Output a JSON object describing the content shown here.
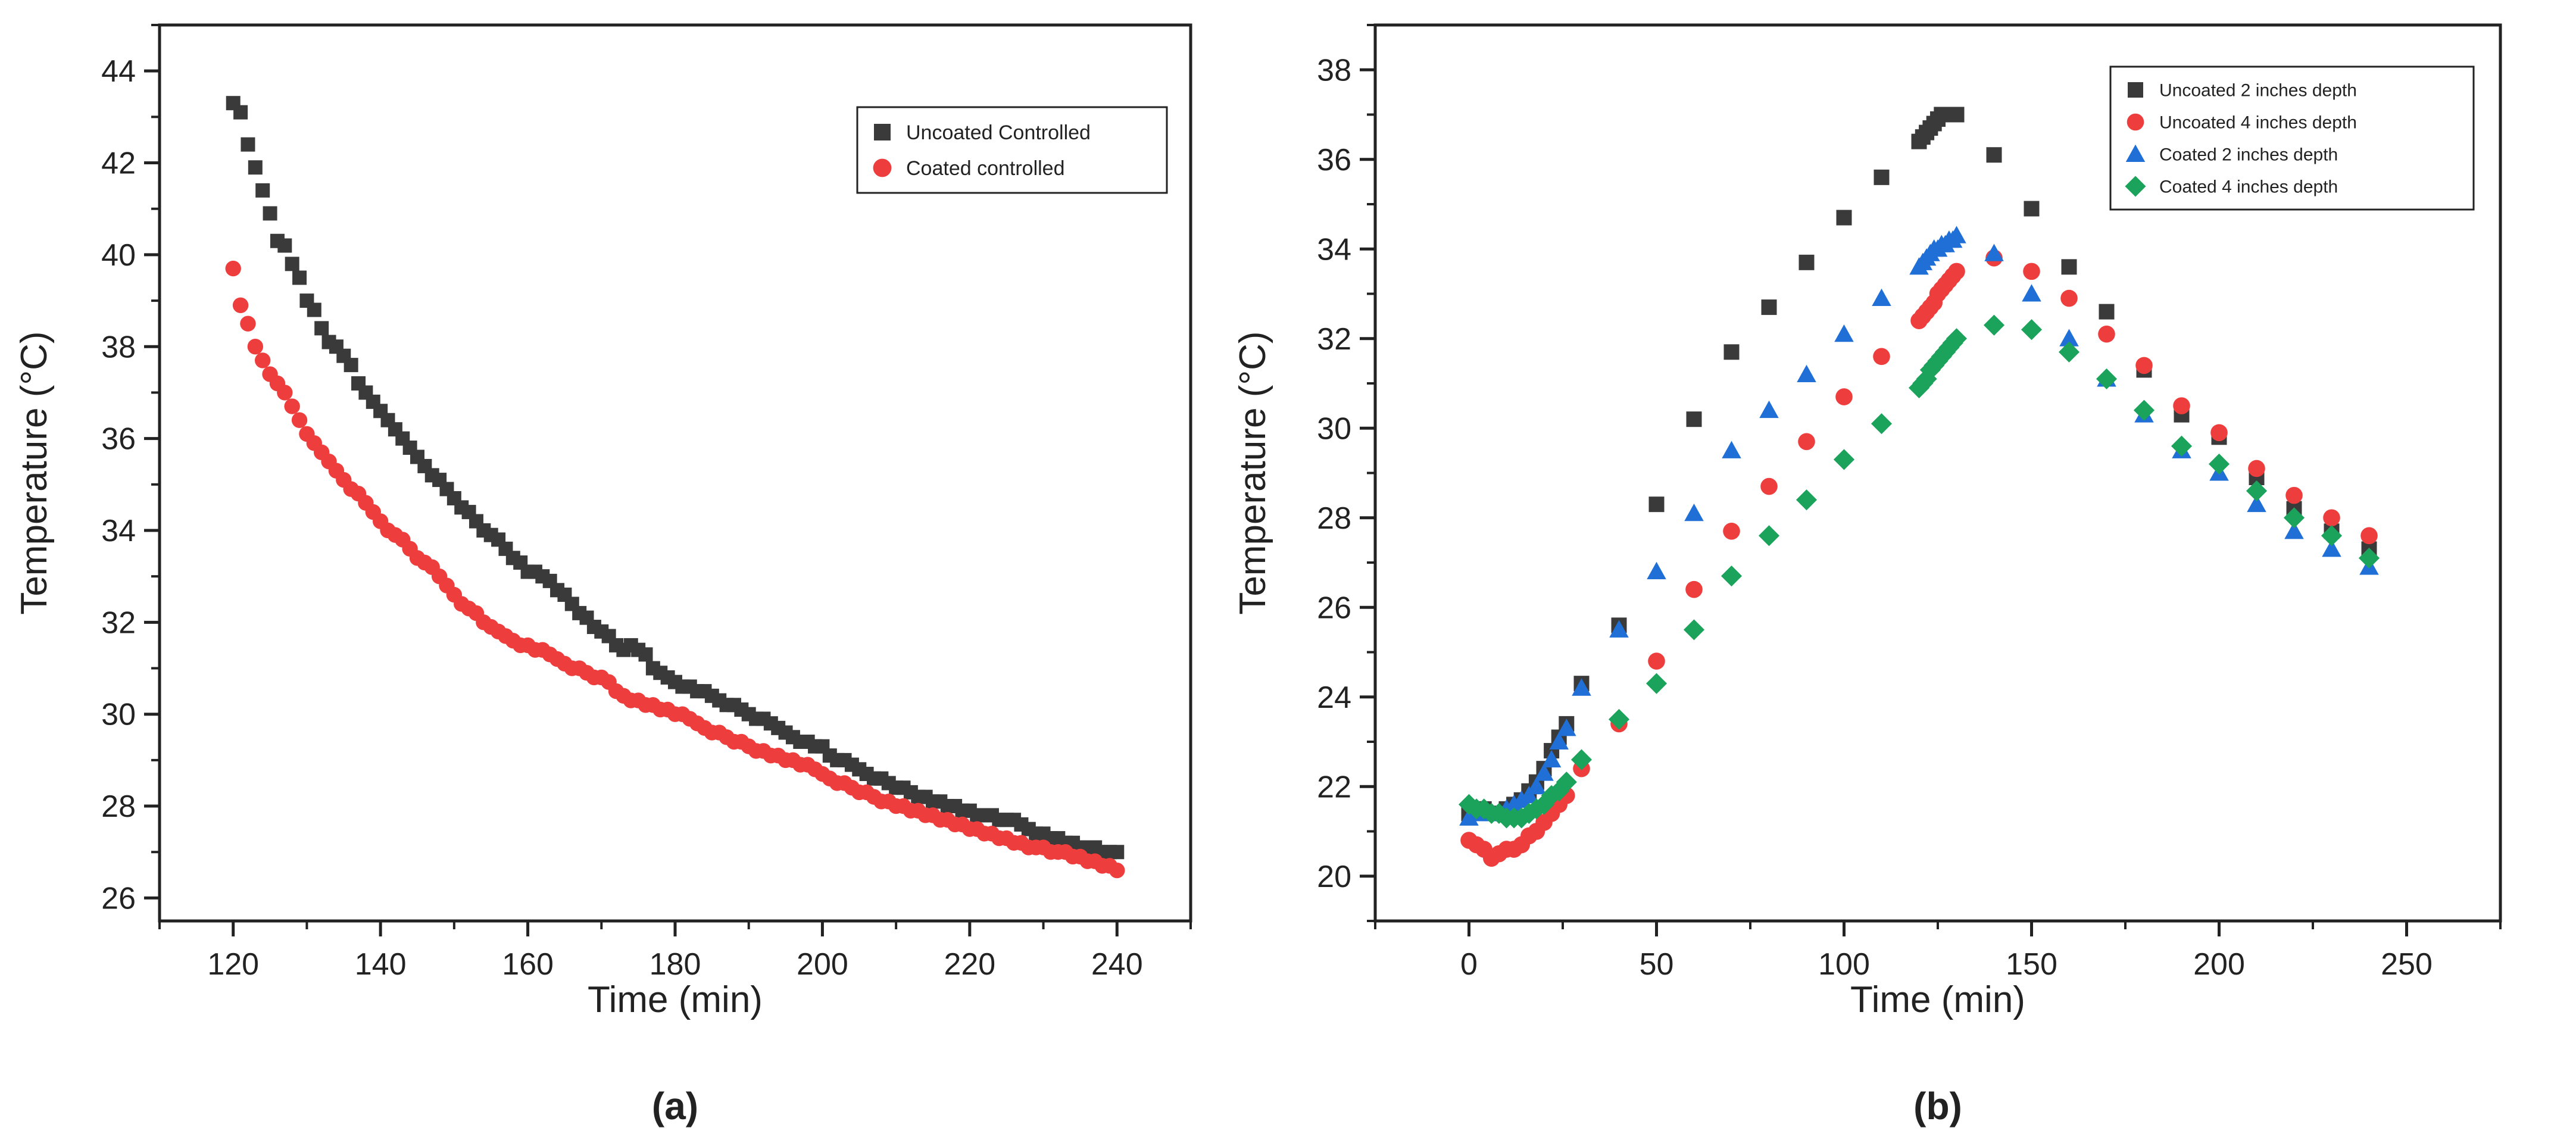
{
  "chart_data": [
    {
      "panel_label": "(a)",
      "type": "scatter",
      "title": "",
      "xlabel": "Time (min)",
      "ylabel": "Temperature (°C)",
      "xlim": [
        110,
        250
      ],
      "ylim": [
        25.5,
        45
      ],
      "xticks": [
        120,
        140,
        160,
        180,
        200,
        220,
        240
      ],
      "yticks": [
        26,
        28,
        30,
        32,
        34,
        36,
        38,
        40,
        42,
        44
      ],
      "grid": false,
      "legend_position": "top-right",
      "series": [
        {
          "name": "Uncoated Controlled",
          "marker": "square",
          "color": "#3a3a3a",
          "x": [
            120,
            121,
            122,
            123,
            124,
            125,
            126,
            127,
            128,
            129,
            130,
            131,
            132,
            133,
            134,
            135,
            136,
            137,
            138,
            139,
            140,
            141,
            142,
            143,
            144,
            145,
            146,
            147,
            148,
            149,
            150,
            151,
            152,
            153,
            154,
            155,
            156,
            157,
            158,
            159,
            160,
            161,
            162,
            163,
            164,
            165,
            166,
            167,
            168,
            169,
            170,
            171,
            172,
            173,
            174,
            175,
            176,
            177,
            178,
            179,
            180,
            181,
            182,
            183,
            184,
            185,
            186,
            187,
            188,
            189,
            190,
            191,
            192,
            193,
            194,
            195,
            196,
            197,
            198,
            199,
            200,
            201,
            202,
            203,
            204,
            205,
            206,
            207,
            208,
            209,
            210,
            211,
            212,
            213,
            214,
            215,
            216,
            217,
            218,
            219,
            220,
            221,
            222,
            223,
            224,
            225,
            226,
            227,
            228,
            229,
            230,
            231,
            232,
            233,
            234,
            235,
            236,
            237,
            238,
            239,
            240
          ],
          "y": [
            43.3,
            43.1,
            42.4,
            41.9,
            41.4,
            40.9,
            40.3,
            40.2,
            39.8,
            39.5,
            39.0,
            38.8,
            38.4,
            38.1,
            38.0,
            37.8,
            37.6,
            37.2,
            37.0,
            36.8,
            36.6,
            36.4,
            36.2,
            36.0,
            35.8,
            35.6,
            35.4,
            35.2,
            35.1,
            34.9,
            34.7,
            34.5,
            34.4,
            34.2,
            34.0,
            33.9,
            33.8,
            33.6,
            33.4,
            33.3,
            33.1,
            33.1,
            33.0,
            32.9,
            32.7,
            32.6,
            32.4,
            32.2,
            32.1,
            31.9,
            31.8,
            31.7,
            31.5,
            31.4,
            31.5,
            31.4,
            31.3,
            31.0,
            30.9,
            30.8,
            30.7,
            30.6,
            30.6,
            30.5,
            30.5,
            30.4,
            30.3,
            30.2,
            30.2,
            30.1,
            30.0,
            29.9,
            29.9,
            29.8,
            29.7,
            29.6,
            29.5,
            29.4,
            29.4,
            29.3,
            29.3,
            29.1,
            29.0,
            29.0,
            28.9,
            28.8,
            28.7,
            28.6,
            28.6,
            28.5,
            28.4,
            28.4,
            28.3,
            28.2,
            28.2,
            28.1,
            28.1,
            28.0,
            28.0,
            27.9,
            27.9,
            27.8,
            27.8,
            27.8,
            27.7,
            27.7,
            27.7,
            27.6,
            27.5,
            27.4,
            27.4,
            27.3,
            27.3,
            27.2,
            27.2,
            27.1,
            27.1,
            27.1,
            27.0,
            27.0,
            27.0
          ]
        },
        {
          "name": "Coated controlled",
          "marker": "circle",
          "color": "#ee3d3d",
          "x": [
            120,
            121,
            122,
            123,
            124,
            125,
            126,
            127,
            128,
            129,
            130,
            131,
            132,
            133,
            134,
            135,
            136,
            137,
            138,
            139,
            140,
            141,
            142,
            143,
            144,
            145,
            146,
            147,
            148,
            149,
            150,
            151,
            152,
            153,
            154,
            155,
            156,
            157,
            158,
            159,
            160,
            161,
            162,
            163,
            164,
            165,
            166,
            167,
            168,
            169,
            170,
            171,
            172,
            173,
            174,
            175,
            176,
            177,
            178,
            179,
            180,
            181,
            182,
            183,
            184,
            185,
            186,
            187,
            188,
            189,
            190,
            191,
            192,
            193,
            194,
            195,
            196,
            197,
            198,
            199,
            200,
            201,
            202,
            203,
            204,
            205,
            206,
            207,
            208,
            209,
            210,
            211,
            212,
            213,
            214,
            215,
            216,
            217,
            218,
            219,
            220,
            221,
            222,
            223,
            224,
            225,
            226,
            227,
            228,
            229,
            230,
            231,
            232,
            233,
            234,
            235,
            236,
            237,
            238,
            239,
            240
          ],
          "y": [
            39.7,
            38.9,
            38.5,
            38.0,
            37.7,
            37.4,
            37.2,
            37.0,
            36.7,
            36.4,
            36.1,
            35.9,
            35.7,
            35.5,
            35.3,
            35.1,
            34.9,
            34.8,
            34.6,
            34.4,
            34.2,
            34.0,
            33.9,
            33.8,
            33.6,
            33.4,
            33.3,
            33.2,
            33.0,
            32.8,
            32.6,
            32.4,
            32.3,
            32.2,
            32.0,
            31.9,
            31.8,
            31.7,
            31.6,
            31.5,
            31.5,
            31.4,
            31.4,
            31.3,
            31.2,
            31.1,
            31.0,
            31.0,
            30.9,
            30.8,
            30.8,
            30.7,
            30.5,
            30.4,
            30.3,
            30.3,
            30.2,
            30.2,
            30.1,
            30.1,
            30.0,
            30.0,
            29.9,
            29.8,
            29.7,
            29.6,
            29.6,
            29.5,
            29.4,
            29.4,
            29.3,
            29.2,
            29.2,
            29.1,
            29.1,
            29.0,
            29.0,
            28.9,
            28.9,
            28.8,
            28.7,
            28.6,
            28.5,
            28.5,
            28.4,
            28.3,
            28.3,
            28.2,
            28.1,
            28.1,
            28.0,
            28.0,
            27.9,
            27.9,
            27.8,
            27.8,
            27.7,
            27.7,
            27.6,
            27.6,
            27.5,
            27.5,
            27.4,
            27.4,
            27.3,
            27.3,
            27.2,
            27.2,
            27.1,
            27.1,
            27.1,
            27.0,
            27.0,
            27.0,
            26.9,
            26.9,
            26.8,
            26.8,
            26.7,
            26.7,
            26.6
          ]
        }
      ]
    },
    {
      "panel_label": "(b)",
      "type": "scatter",
      "title": "",
      "xlabel": "Time (min)",
      "ylabel": "Temperature (°C)",
      "xlim": [
        -25,
        275
      ],
      "ylim": [
        19,
        39
      ],
      "xticks": [
        0,
        50,
        100,
        150,
        200,
        250
      ],
      "yticks": [
        20,
        22,
        24,
        26,
        28,
        30,
        32,
        34,
        36,
        38
      ],
      "grid": false,
      "legend_position": "top-right",
      "series": [
        {
          "name": "Uncoated 2 inches depth",
          "marker": "square",
          "color": "#3a3a3a",
          "x": [
            0,
            2,
            4,
            6,
            8,
            10,
            12,
            14,
            16,
            18,
            20,
            22,
            24,
            26,
            30,
            40,
            50,
            60,
            70,
            80,
            90,
            100,
            110,
            120,
            121,
            122,
            123,
            124,
            125,
            126,
            127,
            128,
            129,
            130,
            140,
            150,
            160,
            170,
            180,
            190,
            200,
            210,
            220,
            230,
            240
          ],
          "y": [
            21.4,
            21.5,
            21.5,
            21.4,
            21.4,
            21.5,
            21.6,
            21.7,
            21.9,
            22.1,
            22.4,
            22.8,
            23.1,
            23.4,
            24.3,
            25.6,
            28.3,
            30.2,
            31.7,
            32.7,
            33.7,
            34.7,
            35.6,
            36.4,
            36.5,
            36.6,
            36.7,
            36.8,
            36.9,
            37.0,
            37.0,
            37.0,
            37.0,
            37.0,
            36.1,
            34.9,
            33.6,
            32.6,
            31.3,
            30.3,
            29.8,
            28.9,
            28.2,
            27.7,
            27.3
          ]
        },
        {
          "name": "Uncoated 4 inches depth",
          "marker": "circle",
          "color": "#ee3d3d",
          "x": [
            0,
            2,
            4,
            6,
            8,
            10,
            12,
            14,
            16,
            18,
            20,
            22,
            24,
            26,
            30,
            40,
            50,
            60,
            70,
            80,
            90,
            100,
            110,
            120,
            121,
            122,
            123,
            124,
            125,
            126,
            127,
            128,
            129,
            130,
            140,
            150,
            160,
            170,
            180,
            190,
            200,
            210,
            220,
            230,
            240
          ],
          "y": [
            20.8,
            20.7,
            20.6,
            20.4,
            20.5,
            20.6,
            20.6,
            20.7,
            20.9,
            21.0,
            21.2,
            21.4,
            21.6,
            21.8,
            22.4,
            23.4,
            24.8,
            26.4,
            27.7,
            28.7,
            29.7,
            30.7,
            31.6,
            32.4,
            32.5,
            32.6,
            32.7,
            32.8,
            33.0,
            33.1,
            33.2,
            33.3,
            33.4,
            33.5,
            33.8,
            33.5,
            32.9,
            32.1,
            31.4,
            30.5,
            29.9,
            29.1,
            28.5,
            28.0,
            27.6
          ]
        },
        {
          "name": "Coated 2 inches depth",
          "marker": "triangle",
          "color": "#1f6fd6",
          "x": [
            0,
            2,
            4,
            6,
            8,
            10,
            12,
            14,
            16,
            18,
            20,
            22,
            24,
            26,
            30,
            40,
            50,
            60,
            70,
            80,
            90,
            100,
            110,
            120,
            121,
            122,
            123,
            124,
            125,
            126,
            127,
            128,
            129,
            130,
            140,
            150,
            160,
            170,
            180,
            190,
            200,
            210,
            220,
            230,
            240
          ],
          "y": [
            21.3,
            21.4,
            21.4,
            21.4,
            21.4,
            21.5,
            21.6,
            21.7,
            21.8,
            22.0,
            22.3,
            22.6,
            23.0,
            23.3,
            24.2,
            25.5,
            26.8,
            28.1,
            29.5,
            30.4,
            31.2,
            32.1,
            32.9,
            33.6,
            33.7,
            33.8,
            33.9,
            34.0,
            34.0,
            34.1,
            34.1,
            34.2,
            34.2,
            34.3,
            33.9,
            33.0,
            32.0,
            31.1,
            30.3,
            29.5,
            29.0,
            28.3,
            27.7,
            27.3,
            26.9
          ]
        },
        {
          "name": "Coated 4 inches depth",
          "marker": "diamond",
          "color": "#1ba35c",
          "x": [
            0,
            2,
            4,
            6,
            8,
            10,
            12,
            14,
            16,
            18,
            20,
            22,
            24,
            26,
            30,
            40,
            50,
            60,
            70,
            80,
            90,
            100,
            110,
            120,
            121,
            122,
            123,
            124,
            125,
            126,
            127,
            128,
            129,
            130,
            140,
            150,
            160,
            170,
            180,
            190,
            200,
            210,
            220,
            230,
            240
          ],
          "y": [
            21.6,
            21.5,
            21.5,
            21.4,
            21.4,
            21.3,
            21.3,
            21.3,
            21.4,
            21.5,
            21.6,
            21.8,
            21.9,
            22.1,
            22.6,
            23.5,
            24.3,
            25.5,
            26.7,
            27.6,
            28.4,
            29.3,
            30.1,
            30.9,
            31.0,
            31.1,
            31.3,
            31.4,
            31.5,
            31.6,
            31.7,
            31.8,
            31.9,
            32.0,
            32.3,
            32.2,
            31.7,
            31.1,
            30.4,
            29.6,
            29.2,
            28.6,
            28.0,
            27.6,
            27.1
          ]
        }
      ]
    }
  ]
}
